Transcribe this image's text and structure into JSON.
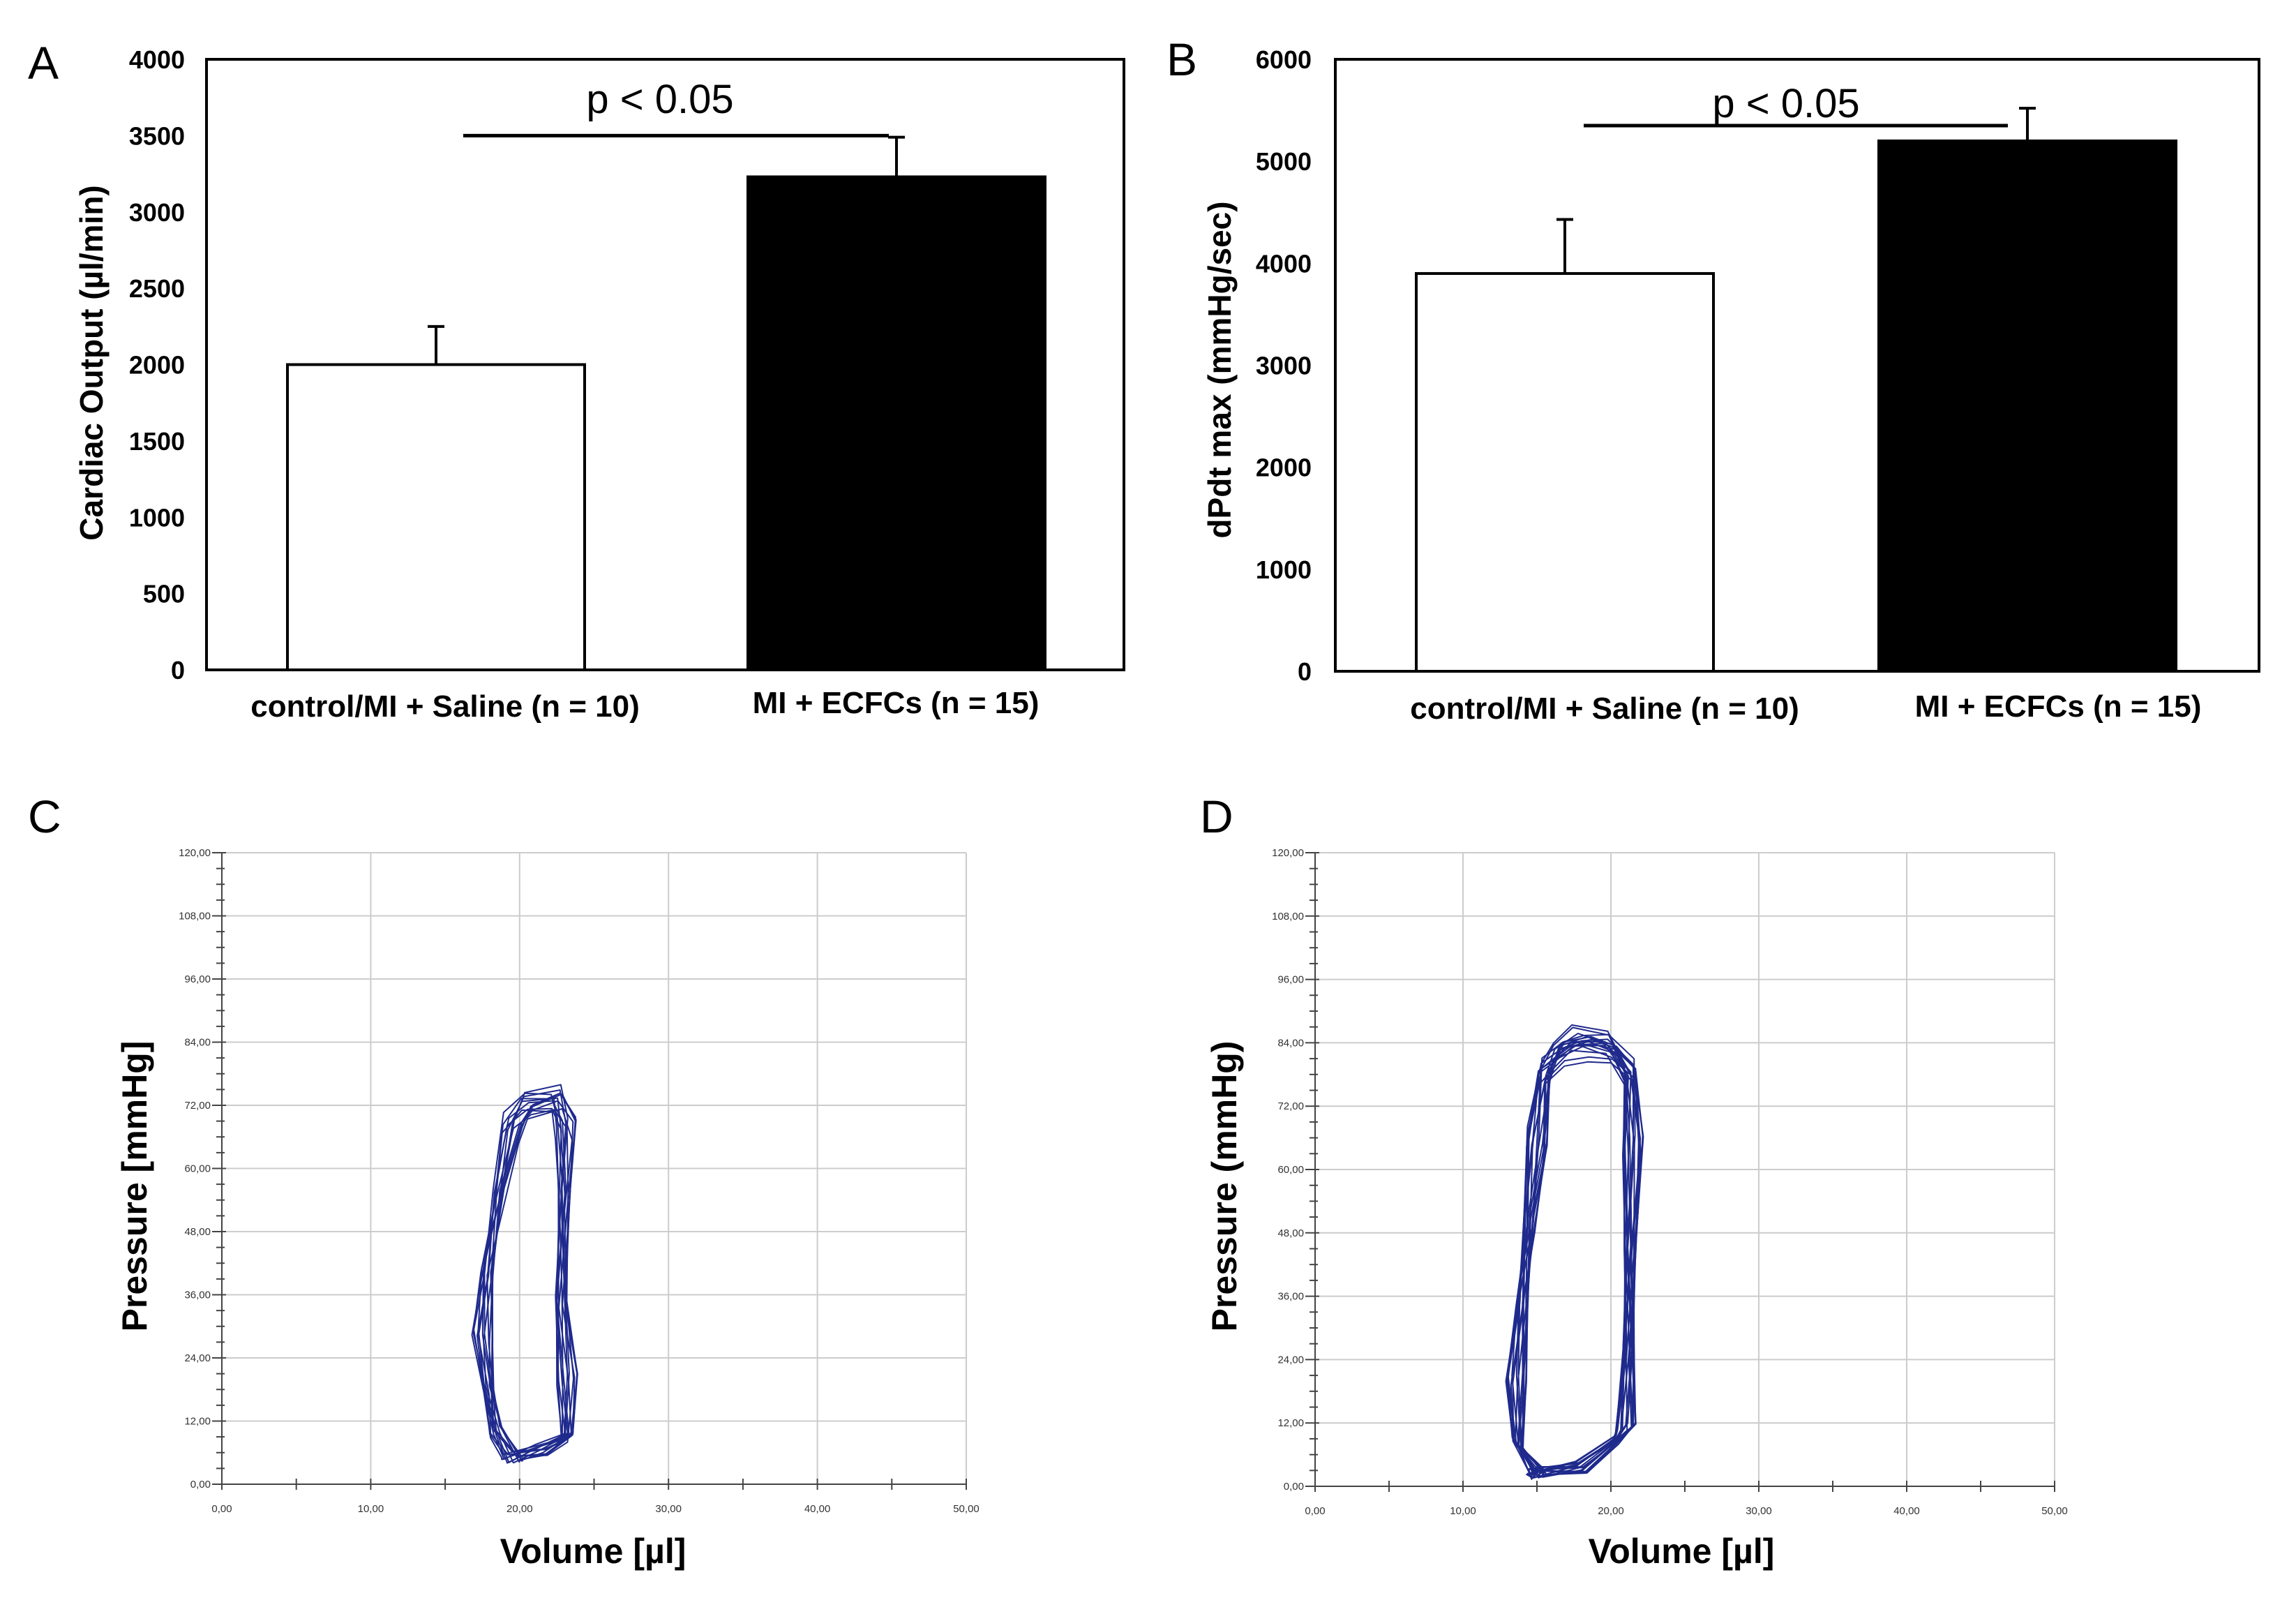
{
  "chart_data": [
    {
      "panel": "A",
      "type": "bar",
      "categories": [
        "control/MI + Saline (n = 10)",
        "MI + ECFCs (n = 15)"
      ],
      "values": [
        2000,
        3230
      ],
      "errors": [
        250,
        260
      ],
      "colors": [
        "#ffffff",
        "#000000"
      ],
      "ylabel": "Cardiac Output (µl/min)",
      "ylim": [
        0,
        4000
      ],
      "yticks": [
        0,
        500,
        1000,
        1500,
        2000,
        2500,
        3000,
        3500,
        4000
      ],
      "significance": {
        "label": "p < 0.05",
        "level": 3500
      }
    },
    {
      "panel": "B",
      "type": "bar",
      "categories": [
        "control/MI + Saline (n = 10)",
        "MI + ECFCs (n = 15)"
      ],
      "values": [
        3900,
        5200
      ],
      "errors": [
        530,
        320
      ],
      "colors": [
        "#ffffff",
        "#000000"
      ],
      "ylabel": "dPdt max (mmHg/sec)",
      "ylim": [
        0,
        6000
      ],
      "yticks": [
        0,
        1000,
        2000,
        3000,
        4000,
        5000,
        6000
      ],
      "significance": {
        "label": "p < 0.05",
        "level": 5350
      }
    },
    {
      "panel": "C",
      "type": "line",
      "xlabel": "Volume [µl]",
      "ylabel": "Pressure [mmHg]",
      "xlim": [
        0,
        50
      ],
      "ylim": [
        0,
        120
      ],
      "xticks": [
        "0,00",
        "10,00",
        "20,00",
        "30,00",
        "40,00",
        "50,00"
      ],
      "yticks": [
        "0,00",
        "12,00",
        "24,00",
        "36,00",
        "48,00",
        "60,00",
        "72,00",
        "84,00",
        "96,00",
        "108,00",
        "120,00"
      ],
      "grid": true,
      "line_color": "#1f2a8c",
      "loop": {
        "cycles": 14,
        "path": [
          [
            19.5,
            5
          ],
          [
            21.5,
            6.5
          ],
          [
            23.2,
            9
          ],
          [
            23.2,
            20
          ],
          [
            22.8,
            35
          ],
          [
            23,
            55
          ],
          [
            23.1,
            68
          ],
          [
            22.5,
            73
          ],
          [
            20.5,
            72
          ],
          [
            19.5,
            68
          ],
          [
            18.6,
            55
          ],
          [
            17.8,
            40
          ],
          [
            17.5,
            28
          ],
          [
            17.9,
            18
          ],
          [
            18.4,
            10
          ],
          [
            19.5,
            5
          ]
        ]
      }
    },
    {
      "panel": "D",
      "type": "line",
      "xlabel": "Volume [µl]",
      "ylabel": "Pressure (mmHg)",
      "xlim": [
        0,
        50
      ],
      "ylim": [
        0,
        120
      ],
      "xticks": [
        "0,00",
        "10,00",
        "20,00",
        "30,00",
        "40,00",
        "50,00"
      ],
      "yticks": [
        "0,00",
        "12,00",
        "24,00",
        "36,00",
        "48,00",
        "60,00",
        "72,00",
        "84,00",
        "96,00",
        "108,00",
        "120,00"
      ],
      "grid": true,
      "line_color": "#1f2a8c",
      "loop": {
        "cycles": 18,
        "path": [
          [
            15,
            2.5
          ],
          [
            18,
            3.5
          ],
          [
            20.5,
            9
          ],
          [
            21,
            11
          ],
          [
            21.2,
            25
          ],
          [
            21.3,
            45
          ],
          [
            21.5,
            65
          ],
          [
            21.3,
            78
          ],
          [
            20,
            83
          ],
          [
            18,
            84
          ],
          [
            16.5,
            82
          ],
          [
            15.5,
            78
          ],
          [
            15,
            65
          ],
          [
            14.5,
            50
          ],
          [
            14,
            35
          ],
          [
            13.6,
            20
          ],
          [
            13.7,
            8
          ],
          [
            15,
            2.5
          ]
        ]
      }
    }
  ]
}
